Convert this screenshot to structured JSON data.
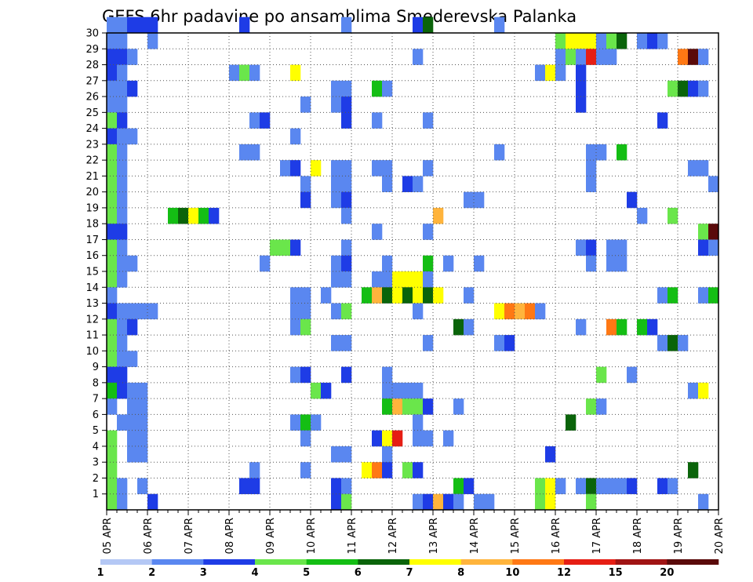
{
  "chart_data": {
    "type": "heatmap",
    "title": "GEFS 6hr padavine po ansamblima Smederevska Palanka",
    "xlabel": "",
    "ylabel": "",
    "x_ticks": [
      "05 APR",
      "06 APR",
      "07 APR",
      "08 APR",
      "09 APR",
      "10 APR",
      "11 APR",
      "12 APR",
      "13 APR",
      "14 APR",
      "15 APR",
      "16 APR",
      "17 APR",
      "18 APR",
      "19 APR",
      "20 APR"
    ],
    "x_range": [
      "05 APR 00Z",
      "20 APR 00Z"
    ],
    "x_step": "6hr",
    "y_ticks": [
      1,
      2,
      3,
      4,
      5,
      6,
      7,
      8,
      9,
      10,
      11,
      12,
      13,
      14,
      15,
      16,
      17,
      18,
      19,
      20,
      21,
      22,
      23,
      24,
      25,
      26,
      27,
      28,
      29,
      30
    ],
    "y_range": [
      0,
      30
    ],
    "grid": true,
    "legend_position": "bottom",
    "levels": [
      1,
      2,
      3,
      4,
      5,
      6,
      7,
      8,
      10,
      12,
      15,
      20
    ],
    "colors": [
      "#b4c8f5",
      "#5a87f0",
      "#1e3ce6",
      "#6ae64b",
      "#14be14",
      "#0a640a",
      "#ffff00",
      "#ffb43c",
      "#ff7814",
      "#e61e14",
      "#a01414",
      "#5a0a0a"
    ],
    "cells": [
      [
        30,
        0,
        1
      ],
      [
        30,
        1,
        1
      ],
      [
        30,
        2,
        2
      ],
      [
        30,
        3,
        2
      ],
      [
        30,
        4,
        2
      ],
      [
        30,
        13,
        2
      ],
      [
        30,
        23,
        1
      ],
      [
        30,
        30,
        2
      ],
      [
        30,
        31,
        5
      ],
      [
        30,
        38,
        1
      ],
      [
        29,
        0,
        1
      ],
      [
        29,
        1,
        1
      ],
      [
        29,
        4,
        1
      ],
      [
        29,
        44,
        3
      ],
      [
        29,
        45,
        6
      ],
      [
        29,
        46,
        6
      ],
      [
        29,
        47,
        6
      ],
      [
        29,
        48,
        1
      ],
      [
        29,
        49,
        3
      ],
      [
        29,
        50,
        5
      ],
      [
        29,
        52,
        1
      ],
      [
        29,
        53,
        2
      ],
      [
        29,
        54,
        1
      ],
      [
        28,
        0,
        2
      ],
      [
        28,
        1,
        2
      ],
      [
        28,
        2,
        1
      ],
      [
        28,
        30,
        1
      ],
      [
        28,
        44,
        1
      ],
      [
        28,
        45,
        3
      ],
      [
        28,
        46,
        1
      ],
      [
        28,
        47,
        9
      ],
      [
        28,
        48,
        1
      ],
      [
        28,
        49,
        1
      ],
      [
        28,
        56,
        8
      ],
      [
        28,
        57,
        11
      ],
      [
        28,
        58,
        1
      ],
      [
        27,
        0,
        2
      ],
      [
        27,
        1,
        1
      ],
      [
        27,
        12,
        1
      ],
      [
        27,
        13,
        3
      ],
      [
        27,
        14,
        1
      ],
      [
        27,
        18,
        6
      ],
      [
        27,
        42,
        1
      ],
      [
        27,
        43,
        6
      ],
      [
        27,
        44,
        1
      ],
      [
        27,
        46,
        2
      ],
      [
        26,
        0,
        1
      ],
      [
        26,
        1,
        1
      ],
      [
        26,
        2,
        2
      ],
      [
        26,
        22,
        1
      ],
      [
        26,
        23,
        1
      ],
      [
        26,
        26,
        4
      ],
      [
        26,
        27,
        1
      ],
      [
        26,
        46,
        2
      ],
      [
        26,
        55,
        3
      ],
      [
        26,
        56,
        5
      ],
      [
        26,
        57,
        2
      ],
      [
        26,
        58,
        1
      ],
      [
        25,
        0,
        1
      ],
      [
        25,
        1,
        1
      ],
      [
        25,
        19,
        1
      ],
      [
        25,
        22,
        1
      ],
      [
        25,
        23,
        2
      ],
      [
        25,
        46,
        2
      ],
      [
        24,
        0,
        3
      ],
      [
        24,
        1,
        2
      ],
      [
        24,
        14,
        1
      ],
      [
        24,
        15,
        2
      ],
      [
        24,
        23,
        2
      ],
      [
        24,
        26,
        1
      ],
      [
        24,
        31,
        1
      ],
      [
        24,
        54,
        2
      ],
      [
        23,
        0,
        2
      ],
      [
        23,
        1,
        1
      ],
      [
        23,
        2,
        1
      ],
      [
        23,
        18,
        1
      ],
      [
        22,
        0,
        3
      ],
      [
        22,
        1,
        1
      ],
      [
        22,
        13,
        1
      ],
      [
        22,
        14,
        1
      ],
      [
        22,
        38,
        1
      ],
      [
        22,
        47,
        1
      ],
      [
        22,
        48,
        1
      ],
      [
        22,
        50,
        4
      ],
      [
        21,
        0,
        3
      ],
      [
        21,
        1,
        1
      ],
      [
        21,
        17,
        1
      ],
      [
        21,
        18,
        2
      ],
      [
        21,
        20,
        6
      ],
      [
        21,
        22,
        1
      ],
      [
        21,
        23,
        1
      ],
      [
        21,
        26,
        1
      ],
      [
        21,
        27,
        1
      ],
      [
        21,
        31,
        1
      ],
      [
        21,
        47,
        1
      ],
      [
        21,
        57,
        1
      ],
      [
        21,
        58,
        1
      ],
      [
        20,
        0,
        3
      ],
      [
        20,
        1,
        1
      ],
      [
        20,
        19,
        1
      ],
      [
        20,
        22,
        1
      ],
      [
        20,
        23,
        1
      ],
      [
        20,
        27,
        1
      ],
      [
        20,
        29,
        2
      ],
      [
        20,
        30,
        1
      ],
      [
        20,
        47,
        1
      ],
      [
        20,
        59,
        1
      ],
      [
        19,
        0,
        3
      ],
      [
        19,
        1,
        1
      ],
      [
        19,
        19,
        2
      ],
      [
        19,
        22,
        1
      ],
      [
        19,
        23,
        2
      ],
      [
        19,
        35,
        1
      ],
      [
        19,
        36,
        1
      ],
      [
        19,
        51,
        2
      ],
      [
        18,
        0,
        3
      ],
      [
        18,
        1,
        1
      ],
      [
        18,
        6,
        4
      ],
      [
        18,
        7,
        5
      ],
      [
        18,
        8,
        6
      ],
      [
        18,
        9,
        4
      ],
      [
        18,
        10,
        2
      ],
      [
        18,
        23,
        1
      ],
      [
        18,
        32,
        7
      ],
      [
        18,
        52,
        1
      ],
      [
        18,
        55,
        3
      ],
      [
        17,
        0,
        2
      ],
      [
        17,
        1,
        2
      ],
      [
        17,
        26,
        1
      ],
      [
        17,
        31,
        1
      ],
      [
        17,
        58,
        3
      ],
      [
        17,
        59,
        11
      ],
      [
        16,
        0,
        3
      ],
      [
        16,
        1,
        1
      ],
      [
        16,
        16,
        3
      ],
      [
        16,
        17,
        3
      ],
      [
        16,
        18,
        2
      ],
      [
        16,
        23,
        1
      ],
      [
        16,
        46,
        1
      ],
      [
        16,
        47,
        2
      ],
      [
        16,
        49,
        1
      ],
      [
        16,
        50,
        1
      ],
      [
        16,
        58,
        2
      ],
      [
        16,
        59,
        1
      ],
      [
        15,
        0,
        3
      ],
      [
        15,
        1,
        1
      ],
      [
        15,
        2,
        1
      ],
      [
        15,
        15,
        1
      ],
      [
        15,
        22,
        1
      ],
      [
        15,
        23,
        2
      ],
      [
        15,
        27,
        1
      ],
      [
        15,
        31,
        4
      ],
      [
        15,
        33,
        1
      ],
      [
        15,
        36,
        1
      ],
      [
        15,
        47,
        1
      ],
      [
        15,
        49,
        1
      ],
      [
        15,
        50,
        1
      ],
      [
        14,
        0,
        3
      ],
      [
        14,
        1,
        1
      ],
      [
        14,
        22,
        1
      ],
      [
        14,
        23,
        1
      ],
      [
        14,
        26,
        1
      ],
      [
        14,
        27,
        1
      ],
      [
        14,
        28,
        6
      ],
      [
        14,
        29,
        6
      ],
      [
        14,
        30,
        6
      ],
      [
        14,
        31,
        1
      ],
      [
        13,
        0,
        1
      ],
      [
        13,
        18,
        1
      ],
      [
        13,
        19,
        1
      ],
      [
        13,
        21,
        1
      ],
      [
        13,
        25,
        4
      ],
      [
        13,
        26,
        7
      ],
      [
        13,
        27,
        5
      ],
      [
        13,
        28,
        6
      ],
      [
        13,
        29,
        5
      ],
      [
        13,
        30,
        6
      ],
      [
        13,
        31,
        5
      ],
      [
        13,
        32,
        6
      ],
      [
        13,
        35,
        1
      ],
      [
        13,
        54,
        1
      ],
      [
        13,
        55,
        4
      ],
      [
        13,
        58,
        1
      ],
      [
        13,
        59,
        4
      ],
      [
        12,
        0,
        2
      ],
      [
        12,
        1,
        1
      ],
      [
        12,
        2,
        1
      ],
      [
        12,
        3,
        1
      ],
      [
        12,
        4,
        1
      ],
      [
        12,
        18,
        1
      ],
      [
        12,
        19,
        1
      ],
      [
        12,
        22,
        1
      ],
      [
        12,
        23,
        3
      ],
      [
        12,
        30,
        1
      ],
      [
        12,
        38,
        6
      ],
      [
        12,
        39,
        8
      ],
      [
        12,
        40,
        7
      ],
      [
        12,
        41,
        8
      ],
      [
        12,
        42,
        1
      ],
      [
        11,
        0,
        3
      ],
      [
        11,
        1,
        1
      ],
      [
        11,
        2,
        2
      ],
      [
        11,
        18,
        1
      ],
      [
        11,
        19,
        3
      ],
      [
        11,
        34,
        5
      ],
      [
        11,
        35,
        1
      ],
      [
        11,
        46,
        1
      ],
      [
        11,
        49,
        8
      ],
      [
        11,
        50,
        4
      ],
      [
        11,
        52,
        4
      ],
      [
        11,
        53,
        2
      ],
      [
        10,
        0,
        3
      ],
      [
        10,
        1,
        1
      ],
      [
        10,
        22,
        1
      ],
      [
        10,
        23,
        1
      ],
      [
        10,
        31,
        1
      ],
      [
        10,
        38,
        1
      ],
      [
        10,
        39,
        2
      ],
      [
        10,
        54,
        1
      ],
      [
        10,
        55,
        5
      ],
      [
        10,
        56,
        1
      ],
      [
        9,
        0,
        3
      ],
      [
        9,
        1,
        1
      ],
      [
        9,
        2,
        1
      ],
      [
        8,
        0,
        2
      ],
      [
        8,
        1,
        2
      ],
      [
        8,
        18,
        1
      ],
      [
        8,
        19,
        2
      ],
      [
        8,
        23,
        2
      ],
      [
        8,
        27,
        1
      ],
      [
        8,
        48,
        3
      ],
      [
        8,
        51,
        1
      ],
      [
        7,
        0,
        4
      ],
      [
        7,
        1,
        2
      ],
      [
        7,
        2,
        1
      ],
      [
        7,
        3,
        1
      ],
      [
        7,
        20,
        3
      ],
      [
        7,
        21,
        2
      ],
      [
        7,
        27,
        1
      ],
      [
        7,
        28,
        1
      ],
      [
        7,
        29,
        1
      ],
      [
        7,
        30,
        1
      ],
      [
        7,
        57,
        1
      ],
      [
        7,
        58,
        6
      ],
      [
        6,
        0,
        1
      ],
      [
        6,
        2,
        1
      ],
      [
        6,
        3,
        1
      ],
      [
        6,
        27,
        4
      ],
      [
        6,
        28,
        7
      ],
      [
        6,
        29,
        3
      ],
      [
        6,
        30,
        3
      ],
      [
        6,
        31,
        2
      ],
      [
        6,
        34,
        1
      ],
      [
        6,
        47,
        3
      ],
      [
        6,
        48,
        1
      ],
      [
        5,
        1,
        1
      ],
      [
        5,
        2,
        1
      ],
      [
        5,
        3,
        1
      ],
      [
        5,
        18,
        1
      ],
      [
        5,
        19,
        4
      ],
      [
        5,
        20,
        1
      ],
      [
        5,
        30,
        1
      ],
      [
        5,
        45,
        5
      ],
      [
        4,
        0,
        3
      ],
      [
        4,
        2,
        1
      ],
      [
        4,
        3,
        1
      ],
      [
        4,
        19,
        1
      ],
      [
        4,
        26,
        2
      ],
      [
        4,
        27,
        6
      ],
      [
        4,
        28,
        9
      ],
      [
        4,
        30,
        1
      ],
      [
        4,
        31,
        1
      ],
      [
        4,
        33,
        1
      ],
      [
        3,
        0,
        3
      ],
      [
        3,
        2,
        1
      ],
      [
        3,
        3,
        1
      ],
      [
        3,
        22,
        1
      ],
      [
        3,
        23,
        1
      ],
      [
        3,
        27,
        1
      ],
      [
        3,
        43,
        2
      ],
      [
        2,
        0,
        3
      ],
      [
        2,
        14,
        1
      ],
      [
        2,
        19,
        1
      ],
      [
        2,
        25,
        6
      ],
      [
        2,
        26,
        8
      ],
      [
        2,
        27,
        2
      ],
      [
        2,
        29,
        3
      ],
      [
        2,
        30,
        2
      ],
      [
        2,
        57,
        5
      ],
      [
        1,
        0,
        3
      ],
      [
        1,
        1,
        1
      ],
      [
        1,
        3,
        1
      ],
      [
        1,
        13,
        2
      ],
      [
        1,
        14,
        2
      ],
      [
        1,
        22,
        2
      ],
      [
        1,
        23,
        1
      ],
      [
        1,
        34,
        4
      ],
      [
        1,
        35,
        2
      ],
      [
        1,
        42,
        3
      ],
      [
        1,
        43,
        6
      ],
      [
        1,
        44,
        1
      ],
      [
        1,
        46,
        1
      ],
      [
        1,
        47,
        5
      ],
      [
        1,
        48,
        1
      ],
      [
        1,
        49,
        1
      ],
      [
        1,
        50,
        1
      ],
      [
        1,
        51,
        2
      ],
      [
        1,
        54,
        2
      ],
      [
        1,
        55,
        1
      ],
      [
        0,
        0,
        3
      ],
      [
        0,
        1,
        1
      ],
      [
        0,
        4,
        2
      ],
      [
        0,
        22,
        2
      ],
      [
        0,
        23,
        3
      ],
      [
        0,
        30,
        1
      ],
      [
        0,
        31,
        2
      ],
      [
        0,
        32,
        7
      ],
      [
        0,
        33,
        2
      ],
      [
        0,
        34,
        1
      ],
      [
        0,
        36,
        1
      ],
      [
        0,
        37,
        1
      ],
      [
        0,
        42,
        3
      ],
      [
        0,
        43,
        6
      ],
      [
        0,
        47,
        3
      ],
      [
        0,
        58,
        1
      ]
    ]
  }
}
